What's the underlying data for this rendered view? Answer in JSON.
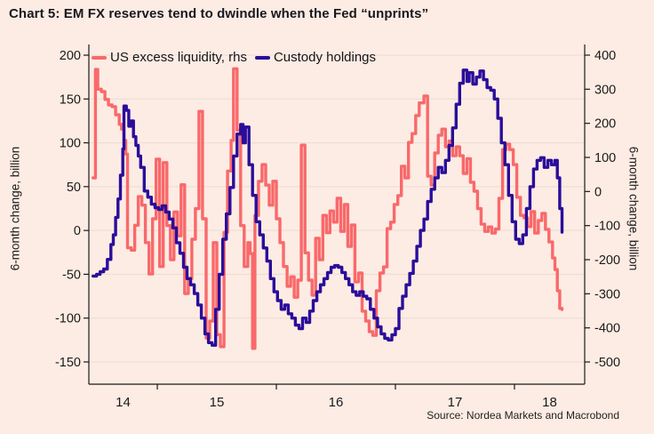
{
  "chart_data": {
    "type": "line",
    "title": "Chart 5: EM FX reserves tend to dwindle when the Fed “unprints”",
    "source": "Source: Nordea Markets and Macrobond",
    "background_color": "#fdece3",
    "grid_color": "#eadcd3",
    "axis_color": "#1a1a1a",
    "tick_label_color": "#1a1a1a",
    "legend_position": "top-left-inside",
    "x_axis": {
      "range": [
        2014.425,
        2018.59
      ],
      "tick_years": [
        2015,
        2016,
        2017,
        2018
      ],
      "labels": [
        {
          "text": "14",
          "year": 2014.7125
        },
        {
          "text": "15",
          "year": 2015.5
        },
        {
          "text": "16",
          "year": 2016.5
        },
        {
          "text": "17",
          "year": 2017.5
        },
        {
          "text": "18",
          "year": 2018.295
        }
      ]
    },
    "left_axis": {
      "label": "6-month change, billion",
      "ticks": [
        200,
        150,
        100,
        50,
        0,
        -50,
        -100,
        -150
      ],
      "range": [
        -175.4,
        212.2
      ]
    },
    "right_axis": {
      "label": "6-month change, billion",
      "ticks": [
        400,
        300,
        200,
        100,
        0,
        -100,
        -200,
        -300,
        -400,
        -500
      ],
      "range": [
        -565.2,
        431.3
      ]
    },
    "series": [
      {
        "name": "US excess liquidity, rhs",
        "axis": "right",
        "color": "#f9696b",
        "line_width": 3.4,
        "points": [
          [
            2014.46,
            40
          ],
          [
            2014.48,
            358
          ],
          [
            2014.5,
            300
          ],
          [
            2014.53,
            293
          ],
          [
            2014.56,
            270
          ],
          [
            2014.59,
            254
          ],
          [
            2014.62,
            249
          ],
          [
            2014.65,
            225
          ],
          [
            2014.68,
            197
          ],
          [
            2014.7,
            183
          ],
          [
            2014.72,
            150
          ],
          [
            2014.735,
            110
          ],
          [
            2014.75,
            -165
          ],
          [
            2014.78,
            -172
          ],
          [
            2014.81,
            -99
          ],
          [
            2014.84,
            -15
          ],
          [
            2014.87,
            -40
          ],
          [
            2014.9,
            -150
          ],
          [
            2014.93,
            -242
          ],
          [
            2014.96,
            -80
          ],
          [
            2014.99,
            95
          ],
          [
            2015.02,
            -220
          ],
          [
            2015.05,
            85
          ],
          [
            2015.08,
            -100
          ],
          [
            2015.11,
            -200
          ],
          [
            2015.14,
            -60
          ],
          [
            2015.17,
            -130
          ],
          [
            2015.2,
            20
          ],
          [
            2015.23,
            -299
          ],
          [
            2015.26,
            -255
          ],
          [
            2015.29,
            -140
          ],
          [
            2015.32,
            -50
          ],
          [
            2015.35,
            235
          ],
          [
            2015.38,
            -80
          ],
          [
            2015.41,
            -430
          ],
          [
            2015.44,
            -380
          ],
          [
            2015.47,
            -150
          ],
          [
            2015.5,
            -420
          ],
          [
            2015.53,
            -455
          ],
          [
            2015.56,
            -120
          ],
          [
            2015.59,
            60
          ],
          [
            2015.62,
            150
          ],
          [
            2015.64,
            360
          ],
          [
            2015.67,
            180
          ],
          [
            2015.7,
            -100
          ],
          [
            2015.73,
            -220
          ],
          [
            2015.76,
            -150
          ],
          [
            2015.78,
            -182
          ],
          [
            2015.8,
            -460
          ],
          [
            2015.82,
            -70
          ],
          [
            2015.85,
            30
          ],
          [
            2015.88,
            79
          ],
          [
            2015.91,
            19
          ],
          [
            2015.94,
            -40
          ],
          [
            2015.97,
            30
          ],
          [
            2016.0,
            -80
          ],
          [
            2016.03,
            -150
          ],
          [
            2016.06,
            -220
          ],
          [
            2016.09,
            -278
          ],
          [
            2016.12,
            -250
          ],
          [
            2016.15,
            -310
          ],
          [
            2016.18,
            -260
          ],
          [
            2016.21,
            136
          ],
          [
            2016.24,
            -180
          ],
          [
            2016.27,
            -260
          ],
          [
            2016.3,
            -304
          ],
          [
            2016.33,
            -137
          ],
          [
            2016.36,
            -200
          ],
          [
            2016.39,
            -70
          ],
          [
            2016.42,
            -121
          ],
          [
            2016.45,
            -57
          ],
          [
            2016.48,
            -90
          ],
          [
            2016.51,
            -20
          ],
          [
            2016.54,
            -117
          ],
          [
            2016.57,
            -38
          ],
          [
            2016.6,
            -161
          ],
          [
            2016.63,
            -98
          ],
          [
            2016.66,
            -265
          ],
          [
            2016.69,
            -239
          ],
          [
            2016.72,
            -351
          ],
          [
            2016.75,
            -380
          ],
          [
            2016.78,
            -411
          ],
          [
            2016.81,
            -422
          ],
          [
            2016.84,
            -291
          ],
          [
            2016.87,
            -239
          ],
          [
            2016.9,
            -221
          ],
          [
            2016.93,
            -109
          ],
          [
            2016.96,
            -90
          ],
          [
            2016.99,
            -38
          ],
          [
            2017.02,
            -12
          ],
          [
            2017.05,
            74
          ],
          [
            2017.08,
            40
          ],
          [
            2017.11,
            144
          ],
          [
            2017.14,
            170
          ],
          [
            2017.17,
            223
          ],
          [
            2017.2,
            260
          ],
          [
            2017.24,
            280
          ],
          [
            2017.27,
            45
          ],
          [
            2017.3,
            19
          ],
          [
            2017.33,
            113
          ],
          [
            2017.36,
            165
          ],
          [
            2017.39,
            183
          ],
          [
            2017.42,
            131
          ],
          [
            2017.45,
            148
          ],
          [
            2017.48,
            105
          ],
          [
            2017.51,
            131
          ],
          [
            2017.54,
            105
          ],
          [
            2017.57,
            53
          ],
          [
            2017.6,
            96
          ],
          [
            2017.63,
            27
          ],
          [
            2017.66,
            1
          ],
          [
            2017.69,
            -50
          ],
          [
            2017.72,
            -96
          ],
          [
            2017.75,
            -117
          ],
          [
            2017.78,
            -104
          ],
          [
            2017.81,
            -122
          ],
          [
            2017.84,
            -110
          ],
          [
            2017.87,
            -20
          ],
          [
            2017.9,
            123
          ],
          [
            2017.93,
            139
          ],
          [
            2017.96,
            123
          ],
          [
            2017.99,
            79
          ],
          [
            2018.02,
            -17
          ],
          [
            2018.05,
            -70
          ],
          [
            2018.08,
            -77
          ],
          [
            2018.11,
            -103
          ],
          [
            2018.14,
            -59
          ],
          [
            2018.17,
            -122
          ],
          [
            2018.2,
            -85
          ],
          [
            2018.23,
            -64
          ],
          [
            2018.26,
            -111
          ],
          [
            2018.29,
            -148
          ],
          [
            2018.32,
            -195
          ],
          [
            2018.34,
            -229
          ],
          [
            2018.36,
            -291
          ],
          [
            2018.38,
            -343
          ],
          [
            2018.4,
            -346
          ]
        ]
      },
      {
        "name": "Custody holdings",
        "axis": "left",
        "color": "#2b0d9b",
        "line_width": 3.4,
        "points": [
          [
            2014.46,
            -52
          ],
          [
            2014.49,
            -50
          ],
          [
            2014.52,
            -47
          ],
          [
            2014.55,
            -44
          ],
          [
            2014.58,
            -33
          ],
          [
            2014.61,
            -16
          ],
          [
            2014.63,
            -5
          ],
          [
            2014.65,
            15
          ],
          [
            2014.67,
            36
          ],
          [
            2014.69,
            63
          ],
          [
            2014.71,
            93
          ],
          [
            2014.72,
            142
          ],
          [
            2014.74,
            137
          ],
          [
            2014.76,
            119
          ],
          [
            2014.78,
            125
          ],
          [
            2014.8,
            107
          ],
          [
            2014.82,
            97
          ],
          [
            2014.84,
            85
          ],
          [
            2014.86,
            72
          ],
          [
            2014.89,
            45
          ],
          [
            2014.92,
            38
          ],
          [
            2014.95,
            30
          ],
          [
            2014.98,
            26
          ],
          [
            2015.01,
            24
          ],
          [
            2015.04,
            28
          ],
          [
            2015.07,
            21
          ],
          [
            2015.1,
            13
          ],
          [
            2015.13,
            3
          ],
          [
            2015.16,
            -14
          ],
          [
            2015.19,
            -26
          ],
          [
            2015.22,
            -42
          ],
          [
            2015.25,
            -55
          ],
          [
            2015.28,
            -62
          ],
          [
            2015.31,
            -72
          ],
          [
            2015.34,
            -85
          ],
          [
            2015.37,
            -100
          ],
          [
            2015.4,
            -118
          ],
          [
            2015.43,
            -128
          ],
          [
            2015.46,
            -131
          ],
          [
            2015.49,
            -90
          ],
          [
            2015.52,
            -50
          ],
          [
            2015.55,
            -10
          ],
          [
            2015.58,
            19
          ],
          [
            2015.61,
            49
          ],
          [
            2015.64,
            85
          ],
          [
            2015.67,
            110
          ],
          [
            2015.7,
            121
          ],
          [
            2015.72,
            100
          ],
          [
            2015.74,
            118
          ],
          [
            2015.77,
            75
          ],
          [
            2015.8,
            40
          ],
          [
            2015.83,
            10
          ],
          [
            2015.86,
            -5
          ],
          [
            2015.89,
            -20
          ],
          [
            2015.92,
            -35
          ],
          [
            2015.95,
            -55
          ],
          [
            2015.98,
            -70
          ],
          [
            2016.01,
            -80
          ],
          [
            2016.04,
            -90
          ],
          [
            2016.07,
            -85
          ],
          [
            2016.1,
            -95
          ],
          [
            2016.13,
            -100
          ],
          [
            2016.16,
            -108
          ],
          [
            2016.19,
            -112
          ],
          [
            2016.22,
            -100
          ],
          [
            2016.25,
            -105
          ],
          [
            2016.28,
            -92
          ],
          [
            2016.31,
            -80
          ],
          [
            2016.34,
            -70
          ],
          [
            2016.37,
            -62
          ],
          [
            2016.4,
            -55
          ],
          [
            2016.43,
            -48
          ],
          [
            2016.46,
            -42
          ],
          [
            2016.49,
            -40
          ],
          [
            2016.52,
            -42
          ],
          [
            2016.55,
            -48
          ],
          [
            2016.58,
            -55
          ],
          [
            2016.61,
            -62
          ],
          [
            2016.64,
            -70
          ],
          [
            2016.67,
            -74
          ],
          [
            2016.7,
            -70
          ],
          [
            2016.73,
            -75
          ],
          [
            2016.76,
            -78
          ],
          [
            2016.79,
            -90
          ],
          [
            2016.82,
            -100
          ],
          [
            2016.85,
            -110
          ],
          [
            2016.88,
            -118
          ],
          [
            2016.91,
            -123
          ],
          [
            2016.94,
            -125
          ],
          [
            2016.97,
            -119
          ],
          [
            2017.0,
            -112
          ],
          [
            2017.03,
            -89
          ],
          [
            2017.06,
            -75
          ],
          [
            2017.09,
            -62
          ],
          [
            2017.12,
            -49
          ],
          [
            2017.15,
            -35
          ],
          [
            2017.18,
            -18
          ],
          [
            2017.21,
            0
          ],
          [
            2017.24,
            13
          ],
          [
            2017.27,
            33
          ],
          [
            2017.3,
            47
          ],
          [
            2017.33,
            60
          ],
          [
            2017.36,
            72
          ],
          [
            2017.39,
            66
          ],
          [
            2017.42,
            80
          ],
          [
            2017.45,
            97
          ],
          [
            2017.48,
            117
          ],
          [
            2017.51,
            144
          ],
          [
            2017.54,
            168
          ],
          [
            2017.57,
            183
          ],
          [
            2017.6,
            170
          ],
          [
            2017.62,
            180
          ],
          [
            2017.65,
            167
          ],
          [
            2017.68,
            175
          ],
          [
            2017.71,
            182
          ],
          [
            2017.74,
            172
          ],
          [
            2017.77,
            163
          ],
          [
            2017.8,
            160
          ],
          [
            2017.83,
            150
          ],
          [
            2017.86,
            128
          ],
          [
            2017.89,
            100
          ],
          [
            2017.92,
            75
          ],
          [
            2017.95,
            40
          ],
          [
            2017.98,
            10
          ],
          [
            2018.01,
            -10
          ],
          [
            2018.04,
            -15
          ],
          [
            2018.07,
            -5
          ],
          [
            2018.1,
            25
          ],
          [
            2018.13,
            50
          ],
          [
            2018.16,
            70
          ],
          [
            2018.19,
            80
          ],
          [
            2018.22,
            83
          ],
          [
            2018.25,
            72
          ],
          [
            2018.28,
            80
          ],
          [
            2018.31,
            75
          ],
          [
            2018.34,
            80
          ],
          [
            2018.36,
            60
          ],
          [
            2018.38,
            25
          ],
          [
            2018.4,
            -2
          ]
        ]
      }
    ]
  }
}
